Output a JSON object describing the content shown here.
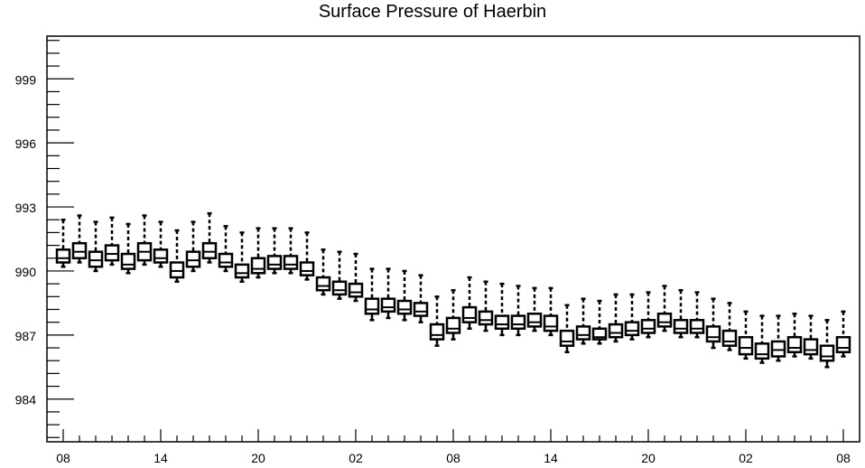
{
  "chart_data": {
    "type": "box",
    "title": "Surface Pressure of Haerbin",
    "xlabel": "",
    "ylabel": "",
    "ylim": [
      982,
      1001
    ],
    "yticks": [
      984,
      987,
      990,
      993,
      996,
      999
    ],
    "ytick_labels": [
      "984",
      "987",
      "990",
      "993",
      "996",
      "999"
    ],
    "xtick_labels": [
      "08",
      "14",
      "20",
      "02",
      "08",
      "14",
      "20",
      "02",
      "08"
    ],
    "x_tick_positions": [
      0,
      6,
      12,
      18,
      24,
      30,
      36,
      42,
      48
    ],
    "grid": false,
    "medians": [
      990.6,
      990.9,
      990.5,
      990.8,
      990.3,
      990.9,
      990.6,
      990.0,
      990.5,
      990.9,
      990.4,
      989.9,
      990.1,
      990.3,
      990.3,
      990.0,
      989.3,
      989.1,
      989.0,
      988.2,
      988.3,
      988.2,
      988.1,
      987.0,
      987.3,
      987.8,
      987.7,
      987.5,
      987.5,
      987.6,
      987.4,
      986.7,
      987.0,
      986.9,
      987.1,
      987.2,
      987.3,
      987.6,
      987.3,
      987.3,
      986.9,
      986.7,
      986.4,
      986.1,
      986.3,
      986.4,
      986.3,
      986.0,
      986.4
    ],
    "mins": [
      990.2,
      990.4,
      990.0,
      990.3,
      989.9,
      990.3,
      990.2,
      989.5,
      990.0,
      990.4,
      990.0,
      989.5,
      989.7,
      989.9,
      989.9,
      989.6,
      988.9,
      988.7,
      988.6,
      987.7,
      987.8,
      987.7,
      987.6,
      986.5,
      986.8,
      987.3,
      987.2,
      987.0,
      987.0,
      987.2,
      987.0,
      986.2,
      986.6,
      986.6,
      986.7,
      986.8,
      986.9,
      987.2,
      986.9,
      986.9,
      986.4,
      986.3,
      985.9,
      985.7,
      985.8,
      986.0,
      985.9,
      985.5,
      986.0
    ],
    "q1": [
      990.4,
      990.6,
      990.2,
      990.5,
      990.1,
      990.5,
      990.4,
      989.7,
      990.2,
      990.6,
      990.2,
      989.7,
      989.9,
      990.1,
      990.1,
      989.8,
      989.1,
      988.9,
      988.8,
      988.0,
      988.1,
      988.0,
      987.9,
      986.8,
      987.1,
      987.6,
      987.5,
      987.3,
      987.3,
      987.4,
      987.2,
      986.5,
      986.8,
      986.8,
      986.9,
      987.0,
      987.1,
      987.4,
      987.1,
      987.1,
      986.7,
      986.5,
      986.1,
      985.9,
      986.0,
      986.2,
      986.1,
      985.8,
      986.2
    ],
    "q3": [
      991.0,
      991.3,
      990.9,
      991.2,
      990.8,
      991.3,
      991.0,
      990.4,
      990.9,
      991.3,
      990.8,
      990.3,
      990.6,
      990.7,
      990.7,
      990.4,
      989.7,
      989.5,
      989.4,
      988.7,
      988.7,
      988.6,
      988.5,
      987.5,
      987.8,
      988.3,
      988.1,
      987.9,
      987.9,
      988.0,
      987.9,
      987.2,
      987.4,
      987.3,
      987.5,
      987.6,
      987.7,
      988.0,
      987.7,
      987.7,
      987.4,
      987.2,
      986.9,
      986.6,
      986.7,
      986.9,
      986.8,
      986.5,
      986.9
    ],
    "maxs": [
      992.4,
      992.6,
      992.3,
      992.5,
      992.2,
      992.6,
      992.3,
      991.9,
      992.3,
      992.7,
      992.1,
      991.8,
      992.0,
      992.0,
      992.0,
      991.8,
      991.0,
      990.9,
      990.8,
      990.1,
      990.1,
      990.0,
      989.8,
      988.8,
      989.1,
      989.7,
      989.5,
      989.4,
      989.3,
      989.2,
      989.2,
      988.4,
      988.7,
      988.6,
      988.9,
      988.9,
      989.0,
      989.3,
      989.1,
      989.0,
      988.7,
      988.5,
      988.1,
      987.9,
      987.9,
      988.0,
      987.9,
      987.7,
      988.1
    ]
  }
}
